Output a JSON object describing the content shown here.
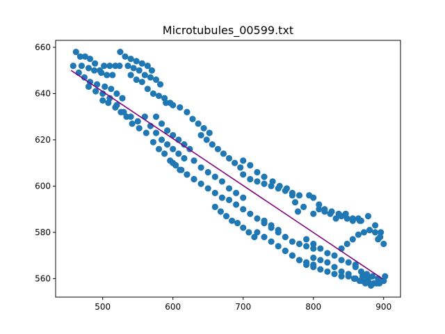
{
  "chart_data": {
    "type": "scatter",
    "title": "Microtubules_00599.txt",
    "xlabel": "",
    "ylabel": "",
    "xlim": [
      433,
      924
    ],
    "ylim": [
      552,
      663
    ],
    "xticks": [
      500,
      600,
      700,
      800,
      900
    ],
    "yticks": [
      560,
      580,
      600,
      620,
      640,
      660
    ],
    "grid": false,
    "colors": {
      "points": "#1f77b4",
      "fit_line": "#800080"
    },
    "series": [
      {
        "type": "scatter",
        "points": [
          [
            462,
            658
          ],
          [
            468,
            656
          ],
          [
            475,
            656
          ],
          [
            482,
            655
          ],
          [
            489,
            653
          ],
          [
            496,
            650
          ],
          [
            502,
            652
          ],
          [
            510,
            652
          ],
          [
            518,
            652
          ],
          [
            458,
            652
          ],
          [
            470,
            652
          ],
          [
            480,
            651
          ],
          [
            488,
            650
          ],
          [
            498,
            649
          ],
          [
            506,
            648
          ],
          [
            514,
            648
          ],
          [
            466,
            649
          ],
          [
            474,
            647
          ],
          [
            482,
            645
          ],
          [
            492,
            644
          ],
          [
            503,
            643
          ],
          [
            512,
            642
          ],
          [
            520,
            640
          ],
          [
            528,
            638
          ],
          [
            480,
            643
          ],
          [
            490,
            641
          ],
          [
            500,
            640
          ],
          [
            510,
            638
          ],
          [
            520,
            635
          ],
          [
            530,
            632
          ],
          [
            540,
            630
          ],
          [
            550,
            628
          ],
          [
            500,
            637
          ],
          [
            508,
            636
          ],
          [
            518,
            634
          ],
          [
            526,
            632
          ],
          [
            534,
            630
          ],
          [
            542,
            627
          ],
          [
            552,
            625
          ],
          [
            562,
            623
          ],
          [
            525,
            658
          ],
          [
            532,
            656
          ],
          [
            540,
            655
          ],
          [
            548,
            654
          ],
          [
            556,
            653
          ],
          [
            564,
            652
          ],
          [
            570,
            650
          ],
          [
            524,
            652
          ],
          [
            536,
            652
          ],
          [
            544,
            651
          ],
          [
            552,
            650
          ],
          [
            560,
            648
          ],
          [
            568,
            647
          ],
          [
            576,
            646
          ],
          [
            582,
            644
          ],
          [
            540,
            648
          ],
          [
            548,
            646
          ],
          [
            556,
            645
          ],
          [
            564,
            642
          ],
          [
            572,
            640
          ],
          [
            580,
            639
          ],
          [
            588,
            638
          ],
          [
            596,
            636
          ],
          [
            560,
            630
          ],
          [
            568,
            626
          ],
          [
            576,
            623
          ],
          [
            584,
            620
          ],
          [
            592,
            618
          ],
          [
            600,
            616
          ],
          [
            608,
            614
          ],
          [
            616,
            612
          ],
          [
            572,
            619
          ],
          [
            580,
            616
          ],
          [
            588,
            614
          ],
          [
            596,
            611
          ],
          [
            604,
            609
          ],
          [
            612,
            607
          ],
          [
            620,
            605
          ],
          [
            630,
            603
          ],
          [
            576,
            630
          ],
          [
            584,
            627
          ],
          [
            592,
            624
          ],
          [
            600,
            622
          ],
          [
            608,
            620
          ],
          [
            616,
            618
          ],
          [
            624,
            616
          ],
          [
            590,
            636
          ],
          [
            600,
            635
          ],
          [
            610,
            634
          ],
          [
            620,
            632
          ],
          [
            628,
            629
          ],
          [
            636,
            627
          ],
          [
            644,
            625
          ],
          [
            652,
            623
          ],
          [
            640,
            622
          ],
          [
            648,
            620
          ],
          [
            656,
            618
          ],
          [
            664,
            616
          ],
          [
            672,
            614
          ],
          [
            680,
            612
          ],
          [
            688,
            610
          ],
          [
            696,
            608
          ],
          [
            600,
            610
          ],
          [
            610,
            607
          ],
          [
            620,
            605
          ],
          [
            630,
            603
          ],
          [
            640,
            601
          ],
          [
            650,
            599
          ],
          [
            660,
            597
          ],
          [
            670,
            595
          ],
          [
            630,
            611
          ],
          [
            640,
            608
          ],
          [
            650,
            606
          ],
          [
            660,
            604
          ],
          [
            670,
            602
          ],
          [
            680,
            599
          ],
          [
            690,
            597
          ],
          [
            700,
            595
          ],
          [
            660,
            591
          ],
          [
            668,
            589
          ],
          [
            676,
            587
          ],
          [
            684,
            585
          ],
          [
            692,
            584
          ],
          [
            700,
            582
          ],
          [
            708,
            580
          ],
          [
            716,
            578
          ],
          [
            680,
            594
          ],
          [
            690,
            592
          ],
          [
            700,
            590
          ],
          [
            710,
            588
          ],
          [
            720,
            586
          ],
          [
            730,
            585
          ],
          [
            740,
            583
          ],
          [
            750,
            581
          ],
          [
            700,
            605
          ],
          [
            710,
            603
          ],
          [
            720,
            602
          ],
          [
            730,
            601
          ],
          [
            740,
            600
          ],
          [
            750,
            599
          ],
          [
            760,
            598
          ],
          [
            770,
            597
          ],
          [
            780,
            596
          ],
          [
            700,
            611
          ],
          [
            710,
            609
          ],
          [
            720,
            606
          ],
          [
            730,
            604
          ],
          [
            742,
            602
          ],
          [
            752,
            600
          ],
          [
            762,
            599
          ],
          [
            720,
            580
          ],
          [
            730,
            578
          ],
          [
            740,
            576
          ],
          [
            750,
            574
          ],
          [
            760,
            572
          ],
          [
            770,
            570
          ],
          [
            780,
            568
          ],
          [
            790,
            567
          ],
          [
            800,
            566
          ],
          [
            730,
            584
          ],
          [
            740,
            582
          ],
          [
            750,
            580
          ],
          [
            760,
            578
          ],
          [
            770,
            576
          ],
          [
            780,
            575
          ],
          [
            790,
            574
          ],
          [
            800,
            573
          ],
          [
            760,
            572
          ],
          [
            770,
            570
          ],
          [
            780,
            568
          ],
          [
            790,
            566
          ],
          [
            800,
            565
          ],
          [
            810,
            564
          ],
          [
            820,
            563
          ],
          [
            830,
            562
          ],
          [
            840,
            561
          ],
          [
            790,
            577
          ],
          [
            800,
            575
          ],
          [
            810,
            573
          ],
          [
            820,
            571
          ],
          [
            830,
            570
          ],
          [
            840,
            568
          ],
          [
            850,
            567
          ],
          [
            860,
            566
          ],
          [
            800,
            569
          ],
          [
            810,
            568
          ],
          [
            820,
            567
          ],
          [
            830,
            565
          ],
          [
            840,
            563
          ],
          [
            850,
            561
          ],
          [
            860,
            560
          ],
          [
            870,
            559
          ],
          [
            880,
            558
          ],
          [
            840,
            573
          ],
          [
            848,
            575
          ],
          [
            856,
            577
          ],
          [
            864,
            579
          ],
          [
            872,
            580
          ],
          [
            880,
            581
          ],
          [
            888,
            580
          ],
          [
            896,
            580
          ],
          [
            800,
            588
          ],
          [
            808,
            590
          ],
          [
            816,
            589
          ],
          [
            824,
            588
          ],
          [
            832,
            586
          ],
          [
            840,
            587
          ],
          [
            848,
            586
          ],
          [
            856,
            585
          ],
          [
            864,
            586
          ],
          [
            800,
            595
          ],
          [
            808,
            592
          ],
          [
            816,
            590
          ],
          [
            826,
            589
          ],
          [
            836,
            588
          ],
          [
            846,
            588
          ],
          [
            856,
            586
          ],
          [
            866,
            585
          ],
          [
            860,
            565
          ],
          [
            868,
            563
          ],
          [
            876,
            562
          ],
          [
            884,
            561
          ],
          [
            892,
            560
          ],
          [
            900,
            559
          ],
          [
            870,
            561
          ],
          [
            878,
            560
          ],
          [
            886,
            558
          ],
          [
            894,
            558
          ],
          [
            902,
            561
          ],
          [
            850,
            562
          ],
          [
            858,
            560
          ],
          [
            866,
            559
          ],
          [
            874,
            558
          ],
          [
            882,
            557
          ],
          [
            890,
            558
          ],
          [
            900,
            575
          ],
          [
            895,
            578
          ],
          [
            888,
            583
          ],
          [
            878,
            587
          ],
          [
            868,
            585
          ],
          [
            892,
            577
          ],
          [
            770,
            596
          ],
          [
            774,
            593
          ],
          [
            778,
            589
          ],
          [
            786,
            591
          ],
          [
            794,
            596
          ]
        ]
      },
      {
        "type": "line",
        "x": [
          455,
          898
        ],
        "y": [
          650,
          560
        ]
      }
    ]
  }
}
